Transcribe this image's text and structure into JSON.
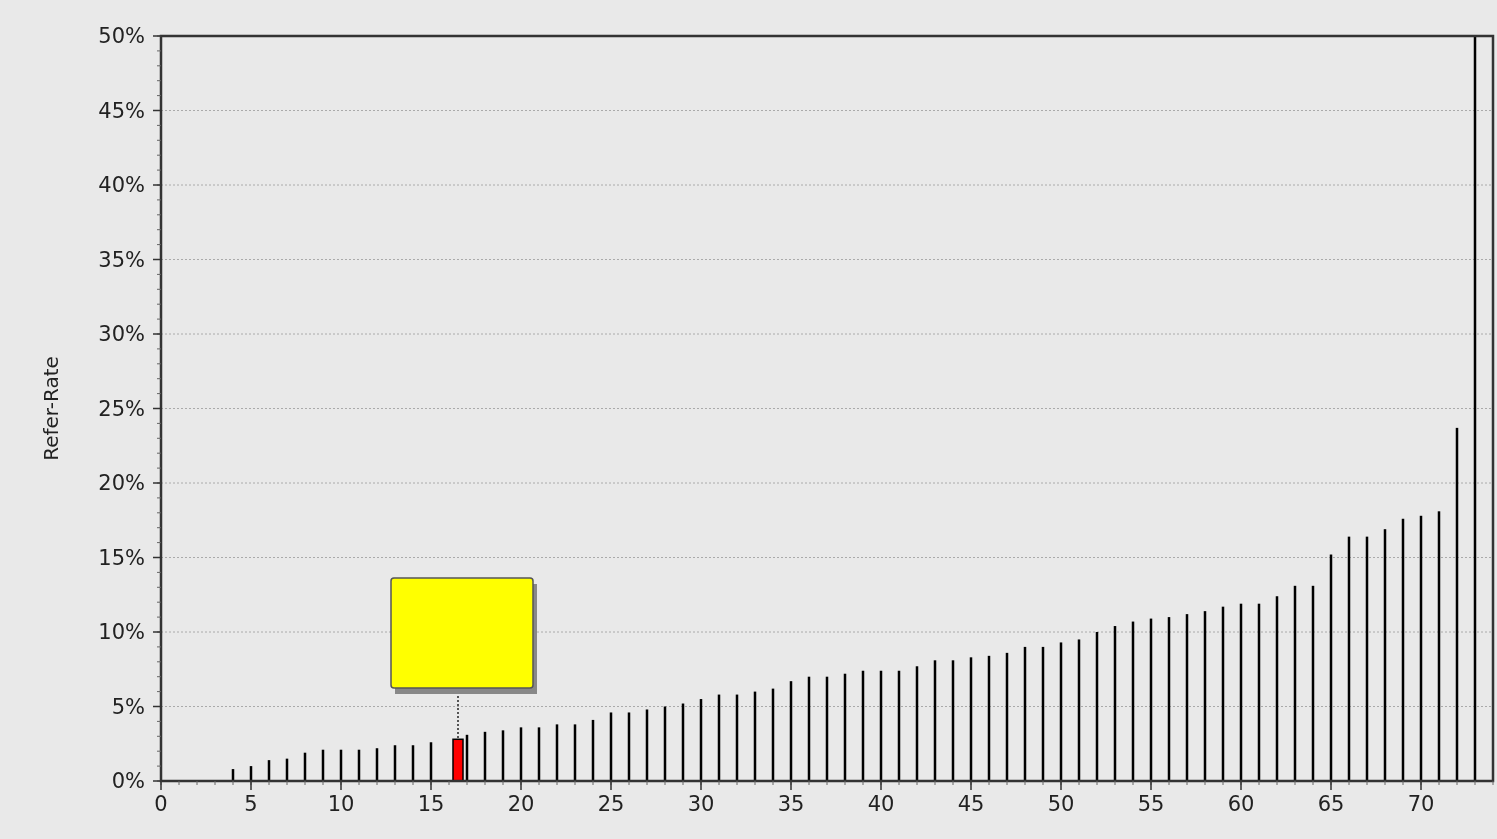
{
  "chart_data": {
    "type": "bar",
    "ylabel": "Refer-Rate",
    "xlim": [
      0,
      74
    ],
    "xticks": [
      0,
      5,
      10,
      15,
      20,
      25,
      30,
      35,
      40,
      45,
      50,
      55,
      60,
      65,
      70
    ],
    "ylim": [
      0,
      50
    ],
    "yticks": [
      {
        "value": 0,
        "label": "0%"
      },
      {
        "value": 5,
        "label": "5%"
      },
      {
        "value": 10,
        "label": "10%"
      },
      {
        "value": 15,
        "label": "15%"
      },
      {
        "value": 20,
        "label": "20%"
      },
      {
        "value": 25,
        "label": "25%"
      },
      {
        "value": 30,
        "label": "30%"
      },
      {
        "value": 35,
        "label": "35%"
      },
      {
        "value": 40,
        "label": "40%"
      },
      {
        "value": 45,
        "label": "45%"
      },
      {
        "value": 50,
        "label": "50%"
      }
    ],
    "grid": "y",
    "series": [
      {
        "color": "#000000",
        "x": [
          4,
          5,
          6,
          7,
          8,
          9,
          10,
          11,
          12,
          13,
          14,
          15,
          17,
          18,
          19,
          20,
          21,
          22,
          23,
          24,
          25,
          26,
          27,
          28,
          29,
          30,
          31,
          32,
          33,
          34,
          35,
          36,
          37,
          38,
          39,
          40,
          41,
          42,
          43,
          44,
          45,
          46,
          47,
          48,
          49,
          50,
          51,
          52,
          53,
          54,
          55,
          56,
          57,
          58,
          59,
          60,
          61,
          62,
          63,
          64,
          65,
          66,
          67,
          68,
          69,
          70,
          71,
          72,
          73
        ],
        "values": [
          0.8,
          1.0,
          1.4,
          1.5,
          1.9,
          2.1,
          2.1,
          2.1,
          2.2,
          2.4,
          2.4,
          2.6,
          3.1,
          3.3,
          3.4,
          3.6,
          3.6,
          3.8,
          3.8,
          4.1,
          4.6,
          4.6,
          4.8,
          5.0,
          5.2,
          5.5,
          5.8,
          5.8,
          6.0,
          6.2,
          6.7,
          7.0,
          7.0,
          7.2,
          7.4,
          7.4,
          7.4,
          7.7,
          8.1,
          8.1,
          8.3,
          8.4,
          8.6,
          9.0,
          9.0,
          9.3,
          9.5,
          10.0,
          10.4,
          10.7,
          10.9,
          11.0,
          11.2,
          11.4,
          11.7,
          11.9,
          11.9,
          12.4,
          13.1,
          13.1,
          15.2,
          16.4,
          16.4,
          16.9,
          17.6,
          17.8,
          18.1,
          23.7,
          50
        ]
      },
      {
        "color": "#ff0000",
        "x": [
          16.5
        ],
        "values": [
          2.8
        ]
      }
    ]
  }
}
